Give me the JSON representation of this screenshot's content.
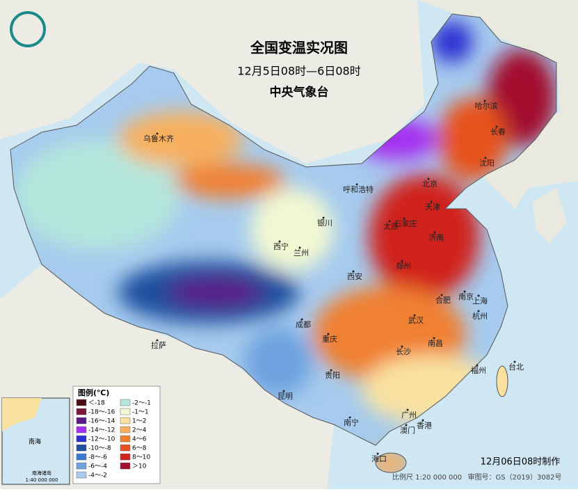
{
  "header": {
    "title": "全国变温实况图",
    "subtitle": "12月5日08时—6日08时",
    "agency": "中央气象台"
  },
  "legend": {
    "title": "图例(℃)",
    "items": [
      {
        "label": "＜-18",
        "color": "#4a0c12"
      },
      {
        "label": "-18～-16",
        "color": "#7a1638"
      },
      {
        "label": "-16～-14",
        "color": "#5a1a86"
      },
      {
        "label": "-14～-12",
        "color": "#a52ef0"
      },
      {
        "label": "-12～-10",
        "color": "#2a2fd0"
      },
      {
        "label": "-10～-8",
        "color": "#1f4f9e"
      },
      {
        "label": "-8～-6",
        "color": "#3b78cf"
      },
      {
        "label": "-6～-4",
        "color": "#6ea3df"
      },
      {
        "label": "-4～-2",
        "color": "#a6cbee"
      },
      {
        "label": "-2～-1",
        "color": "#b4e6dc"
      },
      {
        "label": "-1～1",
        "color": "#f2f8d2"
      },
      {
        "label": "1～2",
        "color": "#f9e2a0"
      },
      {
        "label": "2～4",
        "color": "#f7b05e"
      },
      {
        "label": "4～6",
        "color": "#f08030"
      },
      {
        "label": "6～8",
        "color": "#e6521f"
      },
      {
        "label": "8～10",
        "color": "#d0221f"
      },
      {
        "label": "＞10",
        "color": "#a3102e"
      }
    ]
  },
  "cities": [
    "乌鲁木齐",
    "呼和浩特",
    "哈尔滨",
    "长春",
    "沈阳",
    "北京",
    "天津",
    "石家庄",
    "太原",
    "济南",
    "银川",
    "西宁",
    "兰州",
    "郑州",
    "西安",
    "合肥",
    "南京",
    "上海",
    "杭州",
    "武汉",
    "拉萨",
    "成都",
    "重庆",
    "长沙",
    "南昌",
    "福州",
    "台北",
    "贵阳",
    "昆明",
    "南宁",
    "广州",
    "香港",
    "澳门",
    "海口"
  ],
  "inset": {
    "sea": "南海",
    "islands": "南海诸岛",
    "scale": "1:40 000 000"
  },
  "footer": {
    "made": "12月06日08时制作",
    "scale": "比例尺 1:20 000 000",
    "approval": "审图号：GS（2019）3082号"
  }
}
